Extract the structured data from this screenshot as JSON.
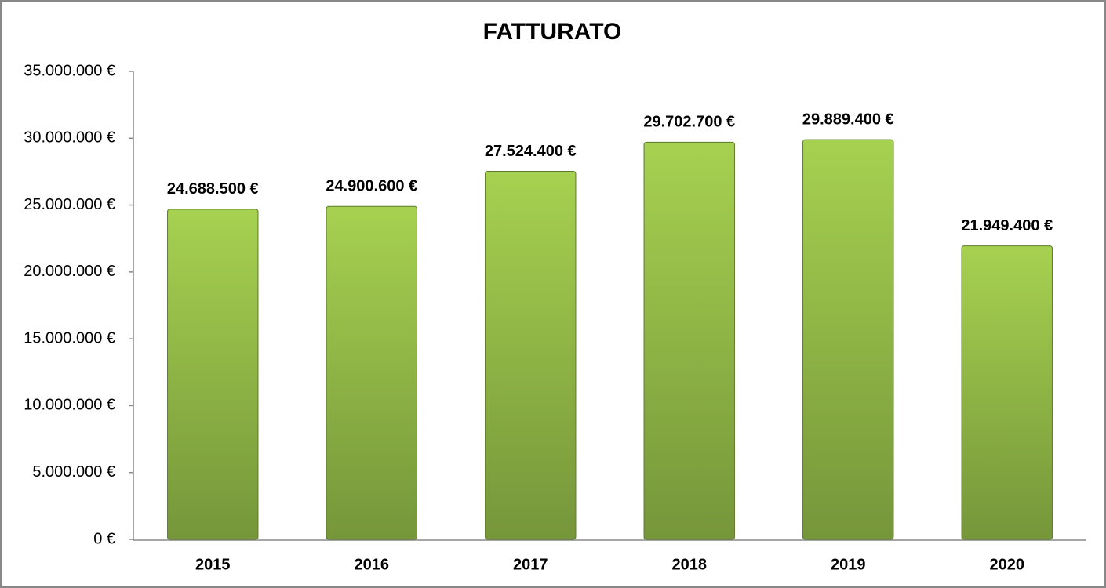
{
  "chart_data": {
    "type": "bar",
    "title": "FATTURATO",
    "categories": [
      "2015",
      "2016",
      "2017",
      "2018",
      "2019",
      "2020"
    ],
    "values": [
      24688500,
      24900600,
      27524400,
      29702700,
      29889400,
      21949400
    ],
    "value_labels": [
      "24.688.500 €",
      "24.900.600 €",
      "27.524.400 €",
      "29.702.700 €",
      "29.889.400 €",
      "21.949.400 €"
    ],
    "color": "#a6d150",
    "ylim": [
      0,
      35000000
    ],
    "yticks": [
      {
        "value": 0,
        "label": "0 €"
      },
      {
        "value": 5000000,
        "label": "5.000.000 €"
      },
      {
        "value": 10000000,
        "label": "10.000.000 €"
      },
      {
        "value": 15000000,
        "label": "15.000.000 €"
      },
      {
        "value": 20000000,
        "label": "20.000.000 €"
      },
      {
        "value": 25000000,
        "label": "25.000.000 €"
      },
      {
        "value": 30000000,
        "label": "30.000.000 €"
      },
      {
        "value": 35000000,
        "label": "35.000.000 €"
      }
    ],
    "grid": false
  }
}
